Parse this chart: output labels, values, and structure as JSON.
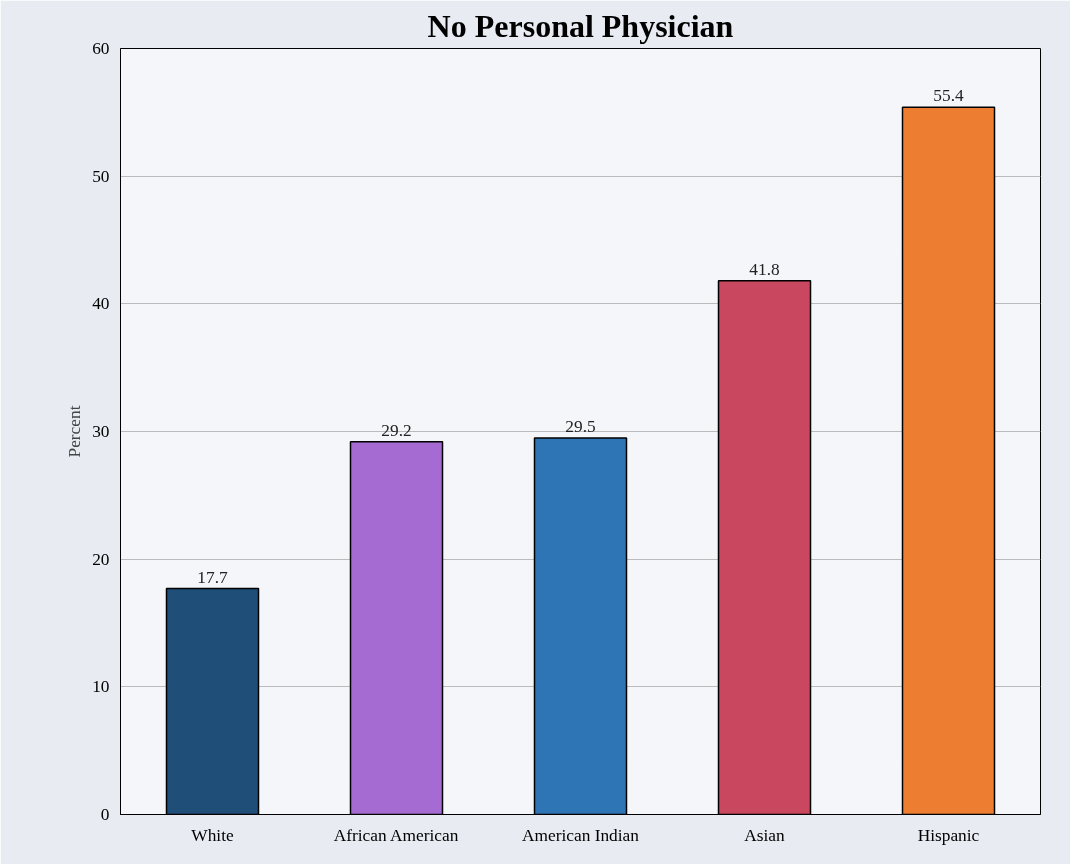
{
  "chart_data": {
    "type": "bar",
    "title": "No Personal Physician",
    "ylabel": "Percent",
    "categories": [
      "White",
      "African American",
      "American Indian",
      "Asian",
      "Hispanic"
    ],
    "values": [
      17.7,
      29.2,
      29.5,
      41.8,
      55.4
    ],
    "colors": [
      "#1f4e79",
      "#a66bd3",
      "#2e75b6",
      "#c9475f",
      "#ed7d31"
    ],
    "ylim": [
      0,
      60
    ],
    "yticks": [
      0,
      10,
      20,
      30,
      40,
      50,
      60
    ],
    "grid": "y",
    "data_labels": true
  }
}
